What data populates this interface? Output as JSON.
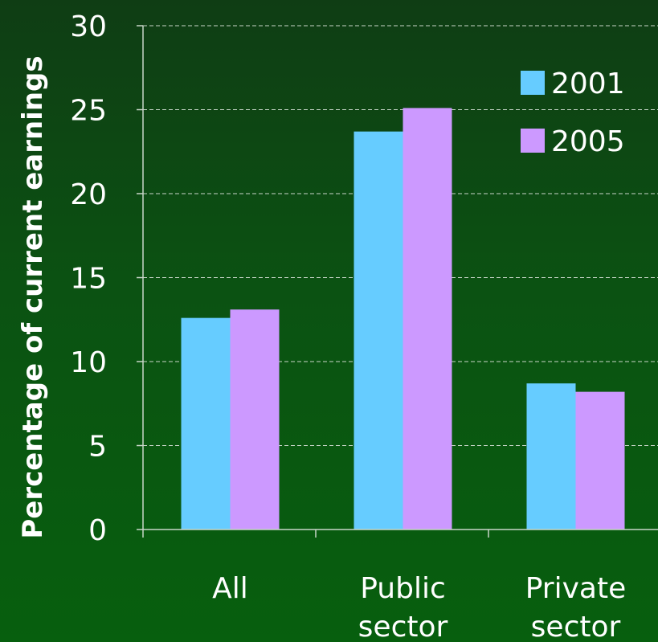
{
  "chart_data": {
    "type": "bar",
    "title": "",
    "ylabel": "Percentage of current earnings",
    "xlabel": "",
    "ylim": [
      0,
      30
    ],
    "yticks": [
      0,
      5,
      10,
      15,
      20,
      25,
      30
    ],
    "grid": true,
    "legend_position": "top-right",
    "categories": [
      [
        "All"
      ],
      [
        "Public",
        "sector"
      ],
      [
        "Private",
        "sector"
      ]
    ],
    "series": [
      {
        "name": "2001",
        "color": "#66ccff",
        "values": [
          12.6,
          23.7,
          8.7
        ]
      },
      {
        "name": "2005",
        "color": "#cc99ff",
        "values": [
          13.1,
          25.1,
          8.2
        ]
      }
    ]
  }
}
